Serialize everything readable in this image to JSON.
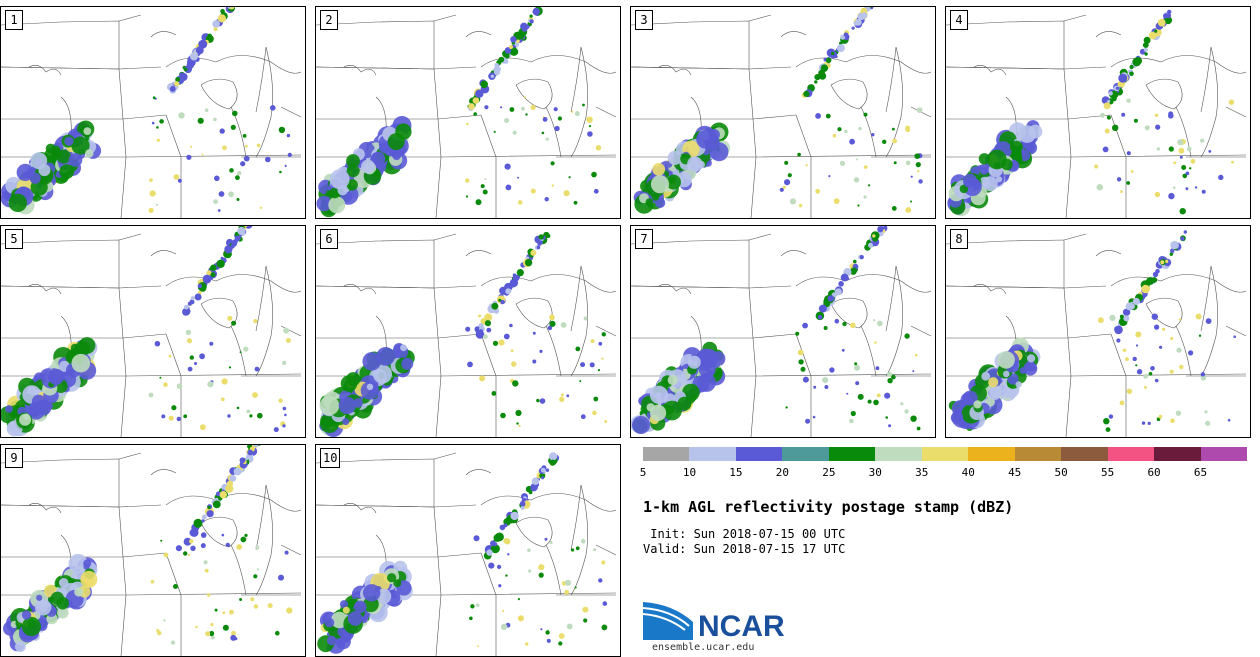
{
  "panels": [
    {
      "label": "1",
      "seed": 11
    },
    {
      "label": "2",
      "seed": 23
    },
    {
      "label": "3",
      "seed": 37
    },
    {
      "label": "4",
      "seed": 41
    },
    {
      "label": "5",
      "seed": 53
    },
    {
      "label": "6",
      "seed": 67
    },
    {
      "label": "7",
      "seed": 79
    },
    {
      "label": "8",
      "seed": 83
    },
    {
      "label": "9",
      "seed": 97
    },
    {
      "label": "10",
      "seed": 101
    }
  ],
  "legend": {
    "colors": [
      "#a6a6a6",
      "#b8c3ec",
      "#5a5ad6",
      "#4e9a9a",
      "#0a8a0a",
      "#bfdcbf",
      "#ebdd6c",
      "#ecb21e",
      "#b98a36",
      "#8c5a3c",
      "#f25383",
      "#6a1a3a",
      "#ae4aae"
    ],
    "labels": [
      "5",
      "10",
      "15",
      "20",
      "25",
      "30",
      "35",
      "40",
      "45",
      "50",
      "55",
      "60",
      "65"
    ]
  },
  "title": "1-km AGL reflectivity postage stamp (dBZ)",
  "init": " Init: Sun 2018-07-15 00 UTC",
  "valid": "Valid: Sun 2018-07-15 17 UTC",
  "logo": {
    "text": "NCAR",
    "site": "ensemble.ucar.edu"
  }
}
